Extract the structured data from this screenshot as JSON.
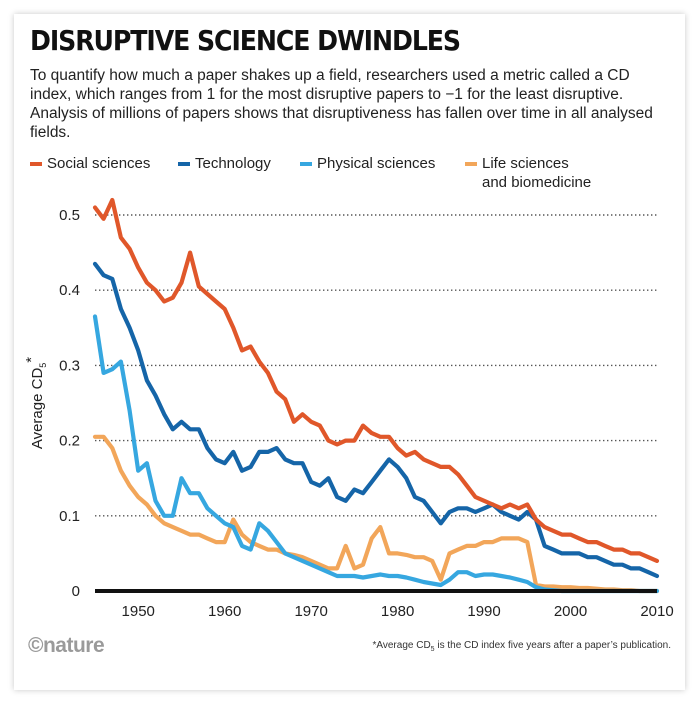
{
  "header": {
    "title": "DISRUPTIVE SCIENCE DWINDLES",
    "description": "To quantify how much a paper shakes up a field, researchers used a metric called a CD index, which ranges from 1 for the most disruptive papers to −1 for the least disruptive. Analysis of millions of papers shows that disruptiveness has fallen over time in all analysed fields."
  },
  "brand": {
    "logo_text": "©nature"
  },
  "footnote": {
    "prefix": "*Average CD",
    "subscript": "5",
    "suffix": " is the CD index five years after a paper’s publication."
  },
  "chart_data": {
    "type": "line",
    "ylabel": "Average CD",
    "ylabel_subscript": "5",
    "ylabel_suffix": "*",
    "xlim": [
      1945,
      2010
    ],
    "ylim": [
      0,
      0.5
    ],
    "x_ticks": [
      1950,
      1960,
      1970,
      1980,
      1990,
      2000,
      2010
    ],
    "y_ticks": [
      0,
      0.1,
      0.2,
      0.3,
      0.4,
      0.5
    ],
    "y_tick_labels": [
      "0",
      "0.1",
      "0.2",
      "0.3",
      "0.4",
      "0.5"
    ],
    "grid": "horizontal-dotted",
    "legend_position": "top",
    "series": [
      {
        "name": "Social sciences",
        "color": "#e0572a",
        "points": [
          [
            1945,
            0.51
          ],
          [
            1946,
            0.495
          ],
          [
            1947,
            0.52
          ],
          [
            1948,
            0.47
          ],
          [
            1949,
            0.455
          ],
          [
            1950,
            0.43
          ],
          [
            1951,
            0.41
          ],
          [
            1952,
            0.4
          ],
          [
            1953,
            0.385
          ],
          [
            1954,
            0.39
          ],
          [
            1955,
            0.41
          ],
          [
            1956,
            0.45
          ],
          [
            1957,
            0.405
          ],
          [
            1958,
            0.395
          ],
          [
            1959,
            0.385
          ],
          [
            1960,
            0.375
          ],
          [
            1961,
            0.35
          ],
          [
            1962,
            0.32
          ],
          [
            1963,
            0.325
          ],
          [
            1964,
            0.305
          ],
          [
            1965,
            0.29
          ],
          [
            1966,
            0.265
          ],
          [
            1967,
            0.255
          ],
          [
            1968,
            0.225
          ],
          [
            1969,
            0.235
          ],
          [
            1970,
            0.225
          ],
          [
            1971,
            0.22
          ],
          [
            1972,
            0.2
          ],
          [
            1973,
            0.195
          ],
          [
            1974,
            0.2
          ],
          [
            1975,
            0.2
          ],
          [
            1976,
            0.22
          ],
          [
            1977,
            0.21
          ],
          [
            1978,
            0.205
          ],
          [
            1979,
            0.205
          ],
          [
            1980,
            0.19
          ],
          [
            1981,
            0.18
          ],
          [
            1982,
            0.185
          ],
          [
            1983,
            0.175
          ],
          [
            1984,
            0.17
          ],
          [
            1985,
            0.165
          ],
          [
            1986,
            0.165
          ],
          [
            1987,
            0.155
          ],
          [
            1988,
            0.14
          ],
          [
            1989,
            0.125
          ],
          [
            1990,
            0.12
          ],
          [
            1991,
            0.115
          ],
          [
            1992,
            0.11
          ],
          [
            1993,
            0.115
          ],
          [
            1994,
            0.11
          ],
          [
            1995,
            0.115
          ],
          [
            1996,
            0.095
          ],
          [
            1997,
            0.085
          ],
          [
            1998,
            0.08
          ],
          [
            1999,
            0.075
          ],
          [
            2000,
            0.075
          ],
          [
            2001,
            0.07
          ],
          [
            2002,
            0.065
          ],
          [
            2003,
            0.065
          ],
          [
            2004,
            0.06
          ],
          [
            2005,
            0.055
          ],
          [
            2006,
            0.055
          ],
          [
            2007,
            0.05
          ],
          [
            2008,
            0.05
          ],
          [
            2009,
            0.045
          ],
          [
            2010,
            0.04
          ]
        ]
      },
      {
        "name": "Technology",
        "color": "#1565a8",
        "points": [
          [
            1945,
            0.435
          ],
          [
            1946,
            0.42
          ],
          [
            1947,
            0.415
          ],
          [
            1948,
            0.375
          ],
          [
            1949,
            0.35
          ],
          [
            1950,
            0.32
          ],
          [
            1951,
            0.28
          ],
          [
            1952,
            0.26
          ],
          [
            1953,
            0.235
          ],
          [
            1954,
            0.215
          ],
          [
            1955,
            0.225
          ],
          [
            1956,
            0.215
          ],
          [
            1957,
            0.215
          ],
          [
            1958,
            0.19
          ],
          [
            1959,
            0.175
          ],
          [
            1960,
            0.17
          ],
          [
            1961,
            0.185
          ],
          [
            1962,
            0.16
          ],
          [
            1963,
            0.165
          ],
          [
            1964,
            0.185
          ],
          [
            1965,
            0.185
          ],
          [
            1966,
            0.19
          ],
          [
            1967,
            0.175
          ],
          [
            1968,
            0.17
          ],
          [
            1969,
            0.17
          ],
          [
            1970,
            0.145
          ],
          [
            1971,
            0.14
          ],
          [
            1972,
            0.15
          ],
          [
            1973,
            0.125
          ],
          [
            1974,
            0.12
          ],
          [
            1975,
            0.135
          ],
          [
            1976,
            0.13
          ],
          [
            1977,
            0.145
          ],
          [
            1978,
            0.16
          ],
          [
            1979,
            0.175
          ],
          [
            1980,
            0.165
          ],
          [
            1981,
            0.15
          ],
          [
            1982,
            0.125
          ],
          [
            1983,
            0.12
          ],
          [
            1984,
            0.105
          ],
          [
            1985,
            0.09
          ],
          [
            1986,
            0.105
          ],
          [
            1987,
            0.11
          ],
          [
            1988,
            0.11
          ],
          [
            1989,
            0.105
          ],
          [
            1990,
            0.11
          ],
          [
            1991,
            0.115
          ],
          [
            1992,
            0.105
          ],
          [
            1993,
            0.1
          ],
          [
            1994,
            0.095
          ],
          [
            1995,
            0.105
          ],
          [
            1996,
            0.095
          ],
          [
            1997,
            0.06
          ],
          [
            1998,
            0.055
          ],
          [
            1999,
            0.05
          ],
          [
            2000,
            0.05
          ],
          [
            2001,
            0.05
          ],
          [
            2002,
            0.045
          ],
          [
            2003,
            0.045
          ],
          [
            2004,
            0.04
          ],
          [
            2005,
            0.035
          ],
          [
            2006,
            0.035
          ],
          [
            2007,
            0.03
          ],
          [
            2008,
            0.03
          ],
          [
            2009,
            0.025
          ],
          [
            2010,
            0.02
          ]
        ]
      },
      {
        "name": "Physical sciences",
        "color": "#36a7e0",
        "points": [
          [
            1945,
            0.365
          ],
          [
            1946,
            0.29
          ],
          [
            1947,
            0.295
          ],
          [
            1948,
            0.305
          ],
          [
            1949,
            0.24
          ],
          [
            1950,
            0.16
          ],
          [
            1951,
            0.17
          ],
          [
            1952,
            0.12
          ],
          [
            1953,
            0.1
          ],
          [
            1954,
            0.1
          ],
          [
            1955,
            0.15
          ],
          [
            1956,
            0.13
          ],
          [
            1957,
            0.13
          ],
          [
            1958,
            0.11
          ],
          [
            1959,
            0.1
          ],
          [
            1960,
            0.09
          ],
          [
            1961,
            0.085
          ],
          [
            1962,
            0.06
          ],
          [
            1963,
            0.055
          ],
          [
            1964,
            0.09
          ],
          [
            1965,
            0.08
          ],
          [
            1966,
            0.065
          ],
          [
            1967,
            0.05
          ],
          [
            1968,
            0.045
          ],
          [
            1969,
            0.04
          ],
          [
            1970,
            0.035
          ],
          [
            1971,
            0.03
          ],
          [
            1972,
            0.025
          ],
          [
            1973,
            0.02
          ],
          [
            1974,
            0.02
          ],
          [
            1975,
            0.02
          ],
          [
            1976,
            0.018
          ],
          [
            1977,
            0.02
          ],
          [
            1978,
            0.022
          ],
          [
            1979,
            0.02
          ],
          [
            1980,
            0.02
          ],
          [
            1981,
            0.018
          ],
          [
            1982,
            0.015
          ],
          [
            1983,
            0.012
          ],
          [
            1984,
            0.01
          ],
          [
            1985,
            0.008
          ],
          [
            1986,
            0.015
          ],
          [
            1987,
            0.025
          ],
          [
            1988,
            0.025
          ],
          [
            1989,
            0.02
          ],
          [
            1990,
            0.022
          ],
          [
            1991,
            0.022
          ],
          [
            1992,
            0.02
          ],
          [
            1993,
            0.018
          ],
          [
            1994,
            0.015
          ],
          [
            1995,
            0.012
          ],
          [
            1996,
            0.005
          ],
          [
            1997,
            0.002
          ],
          [
            1998,
            0.001
          ],
          [
            1999,
            0.0
          ],
          [
            2000,
            0.0
          ],
          [
            2001,
            0.0
          ],
          [
            2002,
            0.0
          ],
          [
            2003,
            0.0
          ],
          [
            2004,
            0.0
          ],
          [
            2005,
            0.0
          ],
          [
            2006,
            0.0
          ],
          [
            2007,
            0.0
          ],
          [
            2008,
            0.0
          ],
          [
            2009,
            0.0
          ],
          [
            2010,
            0.0
          ]
        ]
      },
      {
        "name": "Life sciences and biomedicine",
        "name_lines": [
          "Life sciences",
          "and biomedicine"
        ],
        "color": "#f2a65a",
        "points": [
          [
            1945,
            0.205
          ],
          [
            1946,
            0.205
          ],
          [
            1947,
            0.19
          ],
          [
            1948,
            0.16
          ],
          [
            1949,
            0.14
          ],
          [
            1950,
            0.125
          ],
          [
            1951,
            0.115
          ],
          [
            1952,
            0.1
          ],
          [
            1953,
            0.09
          ],
          [
            1954,
            0.085
          ],
          [
            1955,
            0.08
          ],
          [
            1956,
            0.075
          ],
          [
            1957,
            0.075
          ],
          [
            1958,
            0.07
          ],
          [
            1959,
            0.065
          ],
          [
            1960,
            0.065
          ],
          [
            1961,
            0.095
          ],
          [
            1962,
            0.075
          ],
          [
            1963,
            0.065
          ],
          [
            1964,
            0.06
          ],
          [
            1965,
            0.055
          ],
          [
            1966,
            0.055
          ],
          [
            1967,
            0.05
          ],
          [
            1968,
            0.048
          ],
          [
            1969,
            0.045
          ],
          [
            1970,
            0.04
          ],
          [
            1971,
            0.035
          ],
          [
            1972,
            0.03
          ],
          [
            1973,
            0.03
          ],
          [
            1974,
            0.06
          ],
          [
            1975,
            0.03
          ],
          [
            1976,
            0.035
          ],
          [
            1977,
            0.07
          ],
          [
            1978,
            0.085
          ],
          [
            1979,
            0.05
          ],
          [
            1980,
            0.05
          ],
          [
            1981,
            0.048
          ],
          [
            1982,
            0.045
          ],
          [
            1983,
            0.045
          ],
          [
            1984,
            0.04
          ],
          [
            1985,
            0.015
          ],
          [
            1986,
            0.05
          ],
          [
            1987,
            0.055
          ],
          [
            1988,
            0.06
          ],
          [
            1989,
            0.06
          ],
          [
            1990,
            0.065
          ],
          [
            1991,
            0.065
          ],
          [
            1992,
            0.07
          ],
          [
            1993,
            0.07
          ],
          [
            1994,
            0.07
          ],
          [
            1995,
            0.065
          ],
          [
            1996,
            0.008
          ],
          [
            1997,
            0.006
          ],
          [
            1998,
            0.006
          ],
          [
            1999,
            0.005
          ],
          [
            2000,
            0.005
          ],
          [
            2001,
            0.004
          ],
          [
            2002,
            0.004
          ],
          [
            2003,
            0.003
          ],
          [
            2004,
            0.002
          ],
          [
            2005,
            0.002
          ],
          [
            2006,
            0.001
          ],
          [
            2007,
            0.001
          ],
          [
            2008,
            0.0
          ],
          [
            2009,
            0.0
          ],
          [
            2010,
            0.0
          ]
        ]
      }
    ]
  }
}
